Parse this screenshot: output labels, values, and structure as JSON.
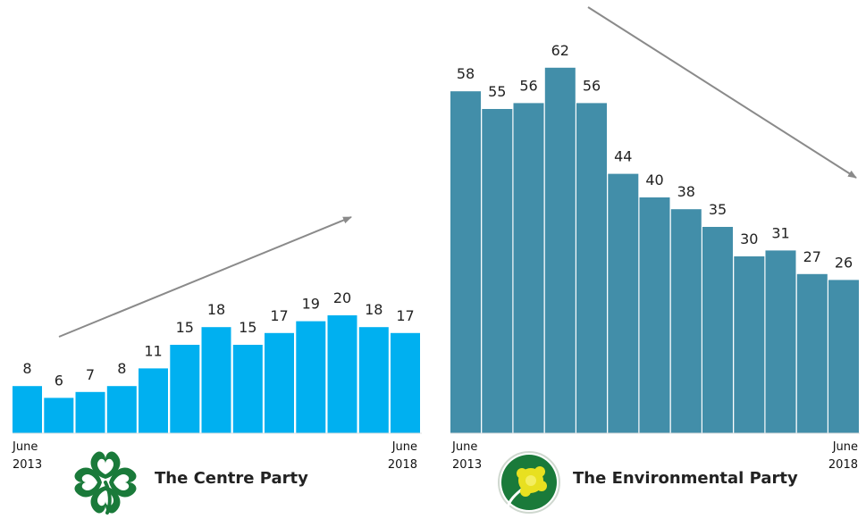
{
  "chart_data": [
    {
      "type": "bar",
      "party_name": "The Centre Party",
      "values": [
        8,
        6,
        7,
        8,
        11,
        15,
        18,
        15,
        17,
        19,
        20,
        18,
        17
      ],
      "start_label": [
        "June",
        "2013"
      ],
      "end_label": [
        "June",
        "2018"
      ],
      "trend": "up",
      "bar_color": "#00b0f0",
      "logo": "four-leaf-clover-logo",
      "logo_color": "#1a7a3a"
    },
    {
      "type": "bar",
      "party_name": "The Environmental Party",
      "values": [
        58,
        55,
        56,
        62,
        56,
        44,
        40,
        38,
        35,
        30,
        31,
        27,
        26
      ],
      "start_label": [
        "June",
        "2013"
      ],
      "end_label": [
        "June",
        "2018"
      ],
      "trend": "down",
      "bar_color": "#428ea9",
      "logo": "dandelion-logo",
      "logo_color": "#1a7a3a"
    }
  ],
  "arrow_color": "#8a8a8a"
}
